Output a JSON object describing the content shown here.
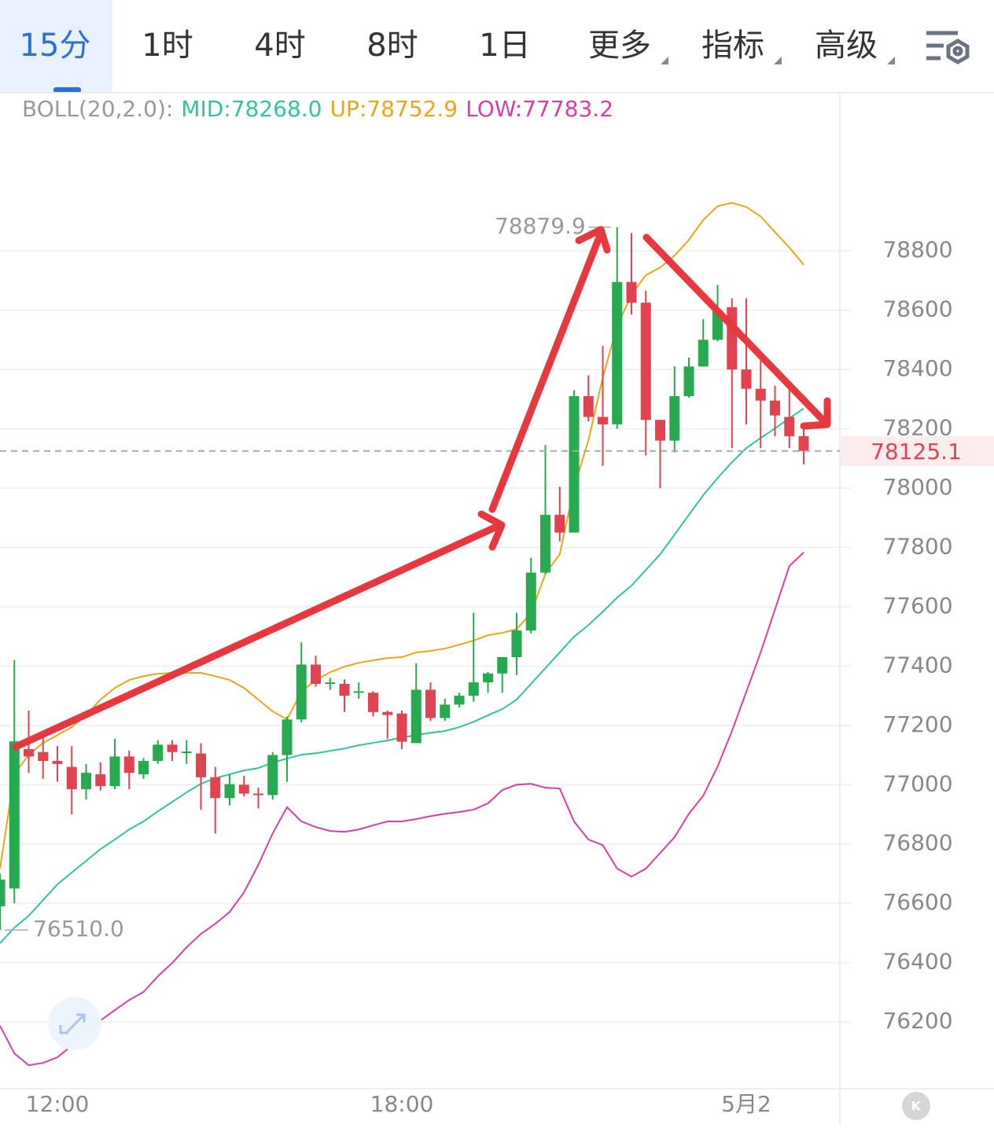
{
  "tabs": [
    "15分",
    "1时",
    "4时",
    "8时",
    "1日",
    "更多",
    "指标",
    "高级"
  ],
  "chart_data": {
    "type": "candlestick",
    "title": "BOLL(20,2.0):",
    "categories": [
      null,
      null,
      null,
      null,
      "12:00",
      null,
      null,
      null,
      null,
      null,
      null,
      null,
      null,
      null,
      null,
      null,
      null,
      null,
      null,
      null,
      null,
      null,
      null,
      null,
      null,
      null,
      null,
      null,
      "18:00",
      null,
      null,
      null,
      null,
      null,
      null,
      null,
      null,
      null,
      null,
      null,
      null,
      null,
      null,
      null,
      null,
      null,
      null,
      null,
      null,
      null,
      null,
      null,
      "5月2",
      null,
      null,
      null,
      null
    ],
    "open": [
      76590,
      76650,
      77120,
      77110,
      77080,
      77060,
      76985,
      77035,
      76995,
      77095,
      77035,
      77080,
      77135,
      77110,
      77105,
      77025,
      76955,
      77000,
      76970,
      76965,
      77100,
      77220,
      77405,
      77340,
      77340,
      77310,
      77310,
      77245,
      77240,
      77140,
      77320,
      77225,
      77270,
      77300,
      77345,
      77375,
      77430,
      77520,
      77715,
      77910,
      77850,
      78310,
      78240,
      78215,
      78695,
      78625,
      78230,
      78160,
      78310,
      78410,
      78500,
      78610,
      78400,
      78335,
      78295,
      78240,
      78175
    ],
    "high": [
      76700,
      77420,
      77250,
      77160,
      77130,
      77130,
      77070,
      77075,
      77155,
      77115,
      77090,
      77150,
      77150,
      77150,
      77140,
      77060,
      77035,
      77030,
      76990,
      77110,
      77230,
      77480,
      77435,
      77360,
      77355,
      77345,
      77315,
      77250,
      77250,
      77410,
      77345,
      77290,
      77310,
      77580,
      77380,
      77430,
      77580,
      77765,
      78145,
      78005,
      78330,
      78380,
      78480,
      78879.9,
      78860,
      78665,
      78230,
      78410,
      78440,
      78570,
      78685,
      78640,
      78640,
      78430,
      78345,
      78335,
      78200
    ],
    "low": [
      76510,
      76600,
      77040,
      77020,
      77010,
      76900,
      76950,
      76980,
      76985,
      76985,
      77020,
      77070,
      77080,
      77070,
      76915,
      76835,
      76930,
      76960,
      76920,
      76950,
      77010,
      77210,
      77330,
      77320,
      77245,
      77290,
      77230,
      77155,
      77120,
      77140,
      77215,
      77215,
      77260,
      77280,
      77310,
      77310,
      77370,
      77510,
      77710,
      77820,
      77850,
      78225,
      78075,
      78200,
      78585,
      78110,
      78000,
      78120,
      78305,
      78410,
      78495,
      78135,
      78215,
      78135,
      78175,
      78135,
      78080
    ],
    "close": [
      76680,
      77146,
      77095,
      77080,
      77070,
      76985,
      77040,
      76995,
      77095,
      77040,
      77080,
      77135,
      77110,
      77112,
      77025,
      76955,
      77002,
      76970,
      76965,
      77100,
      77220,
      77405,
      77340,
      77345,
      77300,
      77315,
      77245,
      77235,
      77145,
      77320,
      77225,
      77270,
      77300,
      77345,
      77375,
      77430,
      77520,
      77715,
      77910,
      77850,
      78310,
      78240,
      78215,
      78695,
      78625,
      78230,
      78160,
      78310,
      78410,
      78500,
      78600,
      78400,
      78335,
      78295,
      78245,
      78175,
      78125.1
    ],
    "up_color": "#26a94f",
    "down_color": "#e0424f",
    "series": [
      {
        "name": "MID:78268.0",
        "color": "#2fc4a0",
        "values": [
          76465,
          76518,
          76558,
          76611,
          76664,
          76704,
          76743,
          76783,
          76815,
          76849,
          76876,
          76910,
          76942,
          76974,
          77003,
          77022,
          77035,
          77048,
          77056,
          77075,
          77088,
          77101,
          77106,
          77114,
          77122,
          77133,
          77141,
          77149,
          77159,
          77167,
          77175,
          77181,
          77194,
          77212,
          77234,
          77255,
          77287,
          77340,
          77393,
          77446,
          77499,
          77538,
          77583,
          77631,
          77671,
          77724,
          77777,
          77843,
          77910,
          77976,
          78034,
          78087,
          78135,
          78169,
          78201,
          78236,
          78268
        ]
      },
      {
        "name": "UP:78752.9",
        "color": "#e6a817",
        "values": [
          76717,
          77035,
          77101,
          77141,
          77167,
          77194,
          77234,
          77287,
          77326,
          77353,
          77366,
          77374,
          77377,
          77377,
          77377,
          77366,
          77353,
          77326,
          77287,
          77247,
          77220,
          77313,
          77353,
          77379,
          77398,
          77411,
          77419,
          77427,
          77430,
          77446,
          77451,
          77459,
          77472,
          77486,
          77504,
          77512,
          77525,
          77578,
          77711,
          77777,
          78002,
          78161,
          78373,
          78546,
          78652,
          78718,
          78744,
          78784,
          78837,
          78904,
          78951,
          78962,
          78948,
          78916,
          78863,
          78811,
          78752.9
        ]
      },
      {
        "name": "LOW:77783.2",
        "color": "#d63fa8",
        "values": [
          76187,
          76094,
          76054,
          76062,
          76081,
          76120,
          76160,
          76205,
          76240,
          76274,
          76301,
          76354,
          76399,
          76452,
          76497,
          76531,
          76571,
          76637,
          76730,
          76836,
          76924,
          76876,
          76857,
          76844,
          76841,
          76849,
          76863,
          76876,
          76876,
          76884,
          76894,
          76902,
          76908,
          76916,
          76937,
          76982,
          77000,
          77003,
          76990,
          76987,
          76876,
          76815,
          76796,
          76717,
          76690,
          76717,
          76770,
          76823,
          76902,
          76963,
          77061,
          77181,
          77313,
          77446,
          77591,
          77737,
          77783.2
        ]
      }
    ],
    "ylim": [
      75975,
      79333
    ],
    "yticks": [
      76200,
      76400,
      76600,
      76800,
      77000,
      77200,
      77400,
      77600,
      77800,
      78000,
      78200,
      78400,
      78600,
      78800
    ],
    "grid": true,
    "max_label": 78879.9,
    "min_label": {
      "value": 76510,
      "label": "76510.0"
    },
    "last_price": 78125.1
  }
}
